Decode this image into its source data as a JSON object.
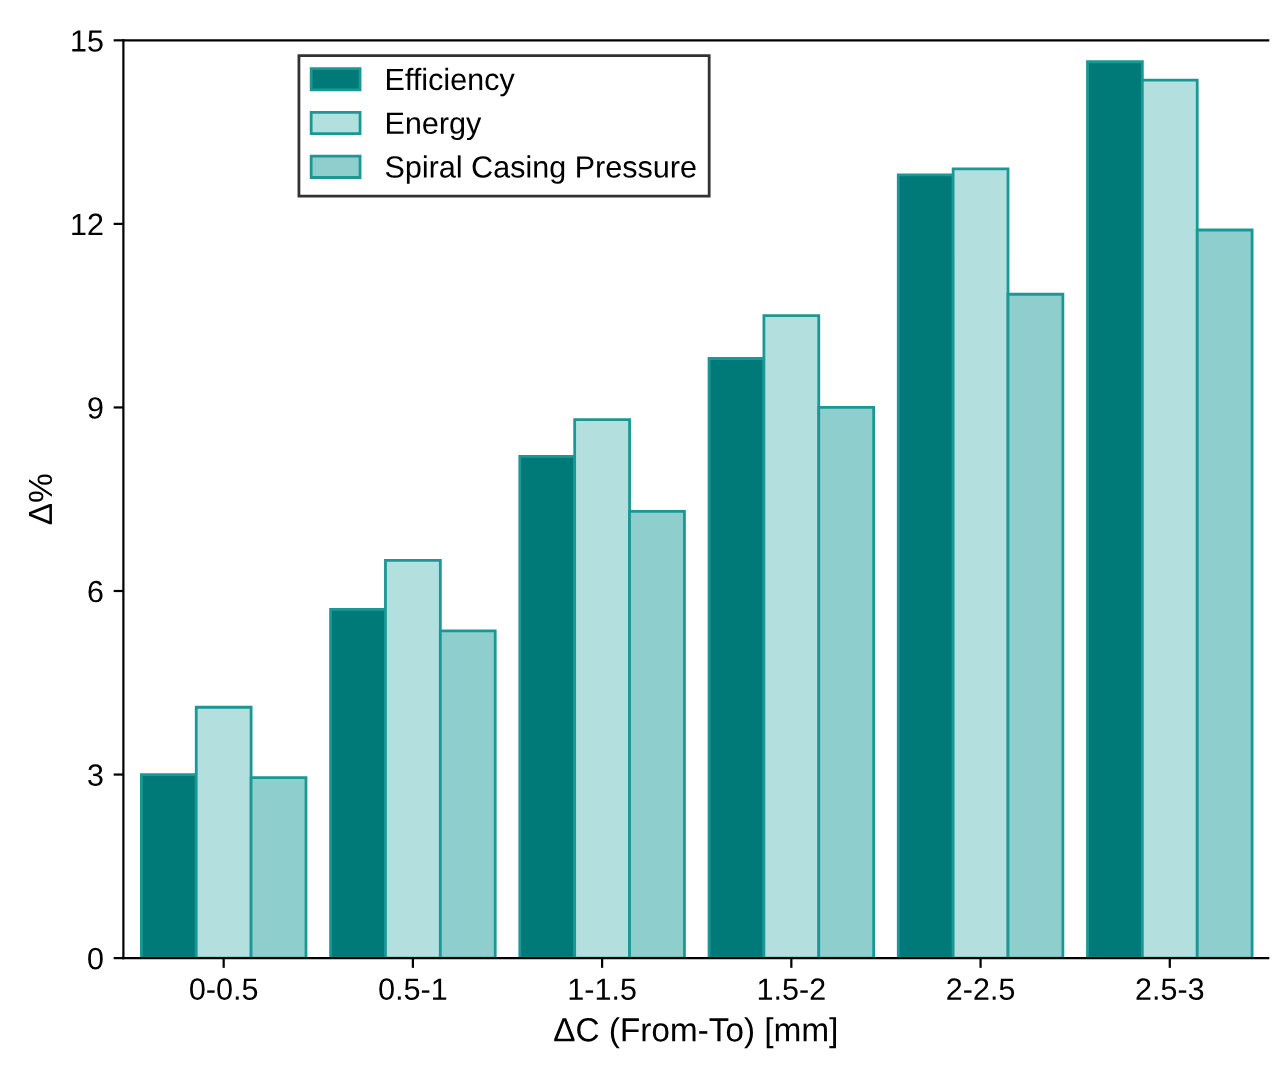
{
  "chart_data": {
    "type": "bar",
    "xlabel": "ΔC (From-To) [mm]",
    "ylabel": "Δ%",
    "categories": [
      "0-0.5",
      "0.5-1",
      "1-1.5",
      "1.5-2",
      "2-2.5",
      "2.5-3"
    ],
    "series": [
      {
        "name": "Efficiency",
        "color": "#007a78",
        "values": [
          3.0,
          5.7,
          8.2,
          9.8,
          12.8,
          14.65
        ]
      },
      {
        "name": "Energy",
        "color": "#b3e0df",
        "values": [
          4.1,
          6.5,
          8.8,
          10.5,
          12.9,
          14.35
        ]
      },
      {
        "name": "Spiral Casing Pressure",
        "color": "#8ecfcd",
        "values": [
          2.95,
          5.35,
          7.3,
          9.0,
          10.85,
          11.9
        ]
      }
    ],
    "ylim": [
      0,
      15
    ],
    "yticks": [
      0,
      3,
      6,
      9,
      12,
      15
    ],
    "grid": false,
    "legend": "top left"
  }
}
